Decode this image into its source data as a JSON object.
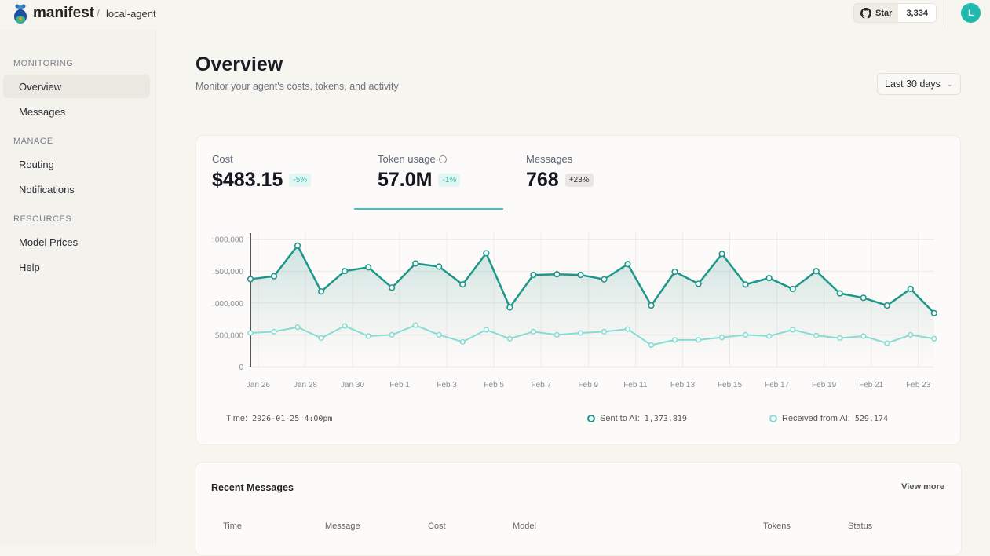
{
  "header": {
    "brand": "manifest",
    "separator": "/",
    "project": "local-agent",
    "star_label": "Star",
    "star_count": "3,334",
    "avatar_initial": "L"
  },
  "sidebar": {
    "sections": [
      {
        "title": "MONITORING",
        "items": [
          {
            "label": "Overview",
            "active": true
          },
          {
            "label": "Messages"
          }
        ]
      },
      {
        "title": "MANAGE",
        "items": [
          {
            "label": "Routing"
          },
          {
            "label": "Notifications"
          }
        ]
      },
      {
        "title": "RESOURCES",
        "items": [
          {
            "label": "Model Prices"
          },
          {
            "label": "Help"
          }
        ]
      }
    ]
  },
  "page": {
    "title": "Overview",
    "subtitle": "Monitor your agent's costs, tokens, and activity",
    "range": "Last 30 days"
  },
  "stats": [
    {
      "label": "Cost",
      "value": "$483.15",
      "change": "-5%"
    },
    {
      "label": "Token usage",
      "value": "57.0M",
      "change": "-1%"
    },
    {
      "label": "Messages",
      "value": "768",
      "change": "+23%"
    }
  ],
  "tooltip": {
    "time_label": "Time:",
    "time_value": "2026-01-25 4:00pm",
    "sent_label": "Sent to AI:",
    "sent_value": "1,373,819",
    "received_label": "Received from AI:",
    "received_value": "529,174"
  },
  "colors": {
    "sent": "#1f968a",
    "received": "#86dcd5",
    "accent": "#3cc7ba"
  },
  "chart_data": {
    "type": "line",
    "x": [
      "Jan 25",
      "Jan 26",
      "Jan 27",
      "Jan 28",
      "Jan 29",
      "Jan 30",
      "Jan 31",
      "Feb 1",
      "Feb 2",
      "Feb 3",
      "Feb 4",
      "Feb 5",
      "Feb 6",
      "Feb 7",
      "Feb 8",
      "Feb 9",
      "Feb 10",
      "Feb 11",
      "Feb 12",
      "Feb 13",
      "Feb 14",
      "Feb 15",
      "Feb 16",
      "Feb 17",
      "Feb 18",
      "Feb 19",
      "Feb 20",
      "Feb 21",
      "Feb 22",
      "Feb 23"
    ],
    "x_ticks": [
      "Jan 26",
      "Jan 28",
      "Jan 30",
      "Feb 1",
      "Feb 3",
      "Feb 5",
      "Feb 7",
      "Feb 9",
      "Feb 11",
      "Feb 13",
      "Feb 15",
      "Feb 17",
      "Feb 19",
      "Feb 21",
      "Feb 23"
    ],
    "y_ticks": [
      "0",
      "500,000",
      "1,000,000",
      "1,500,000",
      "2,000,000"
    ],
    "ylim": [
      0,
      2000000
    ],
    "grid": true,
    "series": [
      {
        "name": "Sent to AI",
        "values": [
          1373819,
          1420000,
          1900000,
          1180000,
          1500000,
          1560000,
          1240000,
          1620000,
          1570000,
          1290000,
          1780000,
          930000,
          1440000,
          1450000,
          1440000,
          1370000,
          1610000,
          960000,
          1490000,
          1300000,
          1770000,
          1290000,
          1390000,
          1220000,
          1500000,
          1150000,
          1080000,
          960000,
          1220000,
          840000
        ]
      },
      {
        "name": "Received from AI",
        "values": [
          529174,
          550000,
          620000,
          450000,
          640000,
          480000,
          500000,
          650000,
          500000,
          390000,
          580000,
          440000,
          550000,
          500000,
          530000,
          550000,
          590000,
          340000,
          420000,
          420000,
          460000,
          500000,
          480000,
          580000,
          490000,
          450000,
          480000,
          370000,
          500000,
          440000
        ]
      }
    ]
  },
  "recent": {
    "title": "Recent Messages",
    "view_more": "View more",
    "columns": [
      "Time",
      "Message",
      "Cost",
      "Model",
      "Tokens",
      "Status"
    ]
  }
}
